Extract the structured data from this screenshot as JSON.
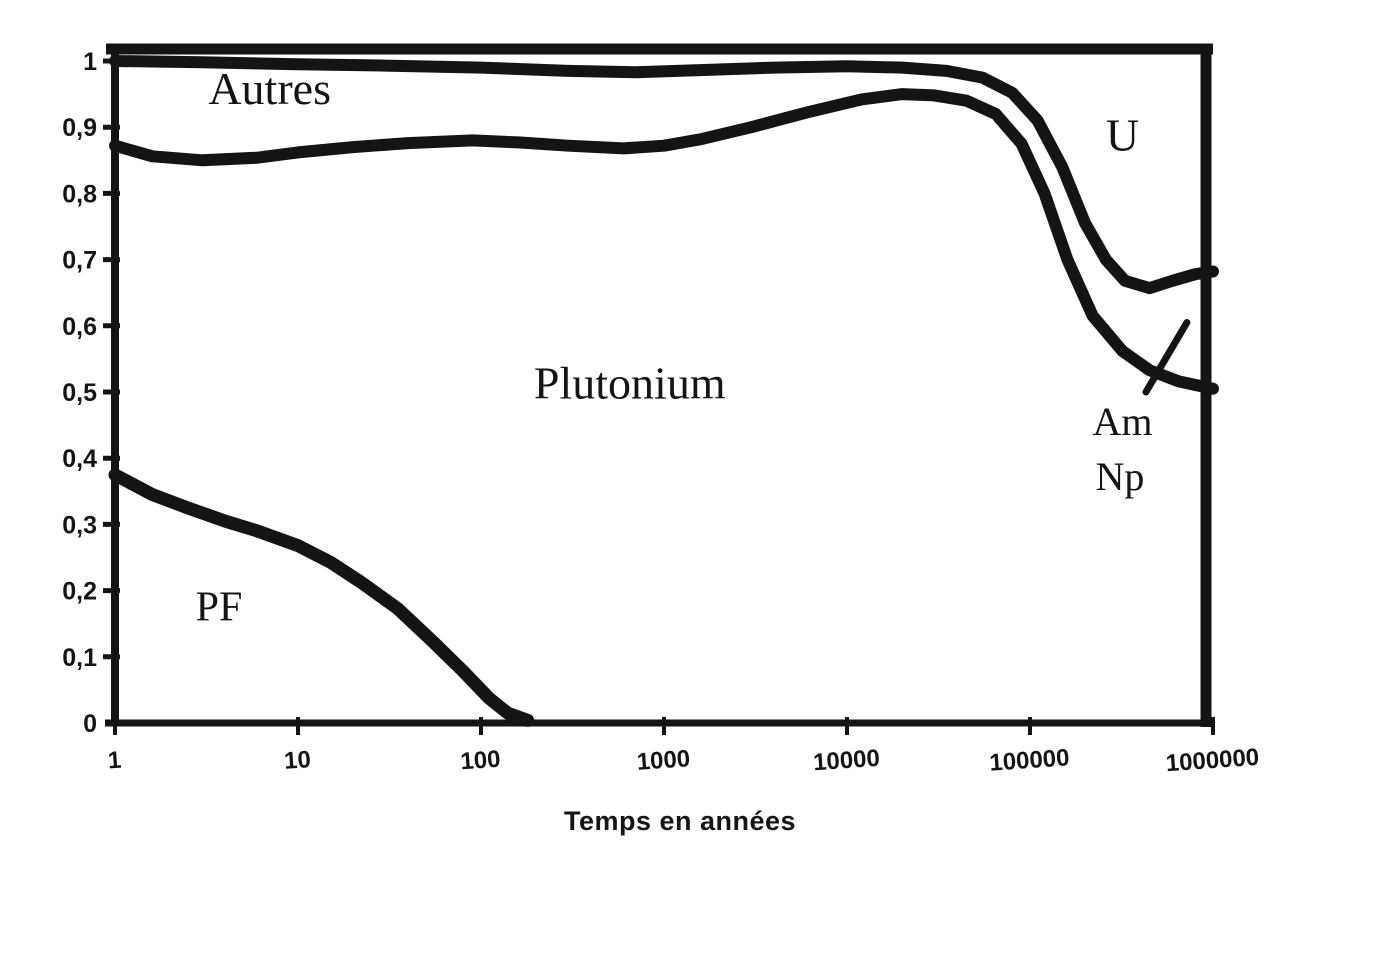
{
  "figure": {
    "description_labels": {
      "x_axis_title": "Temps en années"
    }
  },
  "chart_data": {
    "type": "line",
    "title": "",
    "xlabel": "Temps en années",
    "ylabel": "",
    "x_scale": "log",
    "xlim": [
      1,
      1000000
    ],
    "ylim": [
      0,
      1
    ],
    "grid": false,
    "legend": "none (regions labeled inside plot)",
    "line_color": "#141414",
    "x_ticks": {
      "values": [
        1,
        10,
        100,
        1000,
        10000,
        100000,
        1000000
      ],
      "labels": [
        "1",
        "10",
        "100",
        "1000",
        "10000",
        "100000",
        "1000000"
      ]
    },
    "y_ticks": {
      "values": [
        1,
        0.9,
        0.8,
        0.7,
        0.6,
        0.5,
        0.4,
        0.3,
        0.2,
        0.1,
        0
      ],
      "labels": [
        "1",
        "0,9",
        "0,8",
        "0,7",
        "0,6",
        "0,5",
        "0,4",
        "0,3",
        "0,2",
        "0,1",
        "0"
      ]
    },
    "series": [
      {
        "name": "curve-pf-upper-boundary",
        "region_below": "PF",
        "width": 13,
        "points": [
          [
            1,
            0.375
          ],
          [
            1.6,
            0.345
          ],
          [
            2.5,
            0.325
          ],
          [
            4,
            0.305
          ],
          [
            6,
            0.29
          ],
          [
            10,
            0.268
          ],
          [
            15,
            0.243
          ],
          [
            22,
            0.213
          ],
          [
            35,
            0.173
          ],
          [
            55,
            0.122
          ],
          [
            80,
            0.078
          ],
          [
            110,
            0.038
          ],
          [
            140,
            0.015
          ],
          [
            180,
            0.004
          ]
        ]
      },
      {
        "name": "curve-plutonium-upper-boundary",
        "region_below": "Plutonium",
        "width": 12,
        "points": [
          [
            1,
            0.872
          ],
          [
            1.6,
            0.856
          ],
          [
            3,
            0.85
          ],
          [
            6,
            0.854
          ],
          [
            10,
            0.862
          ],
          [
            20,
            0.87
          ],
          [
            40,
            0.876
          ],
          [
            90,
            0.88
          ],
          [
            160,
            0.877
          ],
          [
            300,
            0.872
          ],
          [
            600,
            0.868
          ],
          [
            1000,
            0.872
          ],
          [
            1600,
            0.882
          ],
          [
            3000,
            0.9
          ],
          [
            6000,
            0.922
          ],
          [
            12000,
            0.942
          ],
          [
            20000,
            0.95
          ],
          [
            30000,
            0.948
          ],
          [
            45000,
            0.94
          ],
          [
            65000,
            0.92
          ],
          [
            90000,
            0.875
          ],
          [
            120000,
            0.8
          ],
          [
            160000,
            0.7
          ],
          [
            220000,
            0.615
          ],
          [
            320000,
            0.562
          ],
          [
            450000,
            0.533
          ],
          [
            650000,
            0.516
          ],
          [
            1000000,
            0.505
          ]
        ]
      },
      {
        "name": "curve-autres-upper-boundary",
        "region_below": "Autres",
        "region_above": "U",
        "width": 12,
        "points": [
          [
            1,
            1.0
          ],
          [
            3,
            0.998
          ],
          [
            10,
            0.995
          ],
          [
            30,
            0.993
          ],
          [
            100,
            0.99
          ],
          [
            300,
            0.985
          ],
          [
            700,
            0.983
          ],
          [
            1500,
            0.986
          ],
          [
            4000,
            0.99
          ],
          [
            10000,
            0.992
          ],
          [
            20000,
            0.99
          ],
          [
            35000,
            0.985
          ],
          [
            55000,
            0.975
          ],
          [
            80000,
            0.952
          ],
          [
            110000,
            0.91
          ],
          [
            150000,
            0.84
          ],
          [
            200000,
            0.755
          ],
          [
            260000,
            0.7
          ],
          [
            330000,
            0.668
          ],
          [
            450000,
            0.657
          ],
          [
            600000,
            0.668
          ],
          [
            800000,
            0.678
          ],
          [
            1000000,
            0.682
          ]
        ]
      }
    ],
    "region_labels": [
      {
        "text": "Autres",
        "x": 7,
        "y": 0.935,
        "size": 46
      },
      {
        "text": "Plutonium",
        "x": 650,
        "y": 0.49,
        "size": 46
      },
      {
        "text": "PF",
        "x": 3.7,
        "y": 0.155,
        "size": 42
      },
      {
        "text": "U",
        "x": 320000,
        "y": 0.865,
        "size": 46
      },
      {
        "text": "Am",
        "x": 320000,
        "y": 0.435,
        "size": 40
      },
      {
        "text": "Np",
        "x": 310000,
        "y": 0.352,
        "size": 40
      }
    ],
    "annotation_lines": [
      {
        "name": "am-np-pointer-line",
        "x1": 430000,
        "y1": 0.5,
        "x2": 720000,
        "y2": 0.605,
        "width": 7
      }
    ]
  }
}
